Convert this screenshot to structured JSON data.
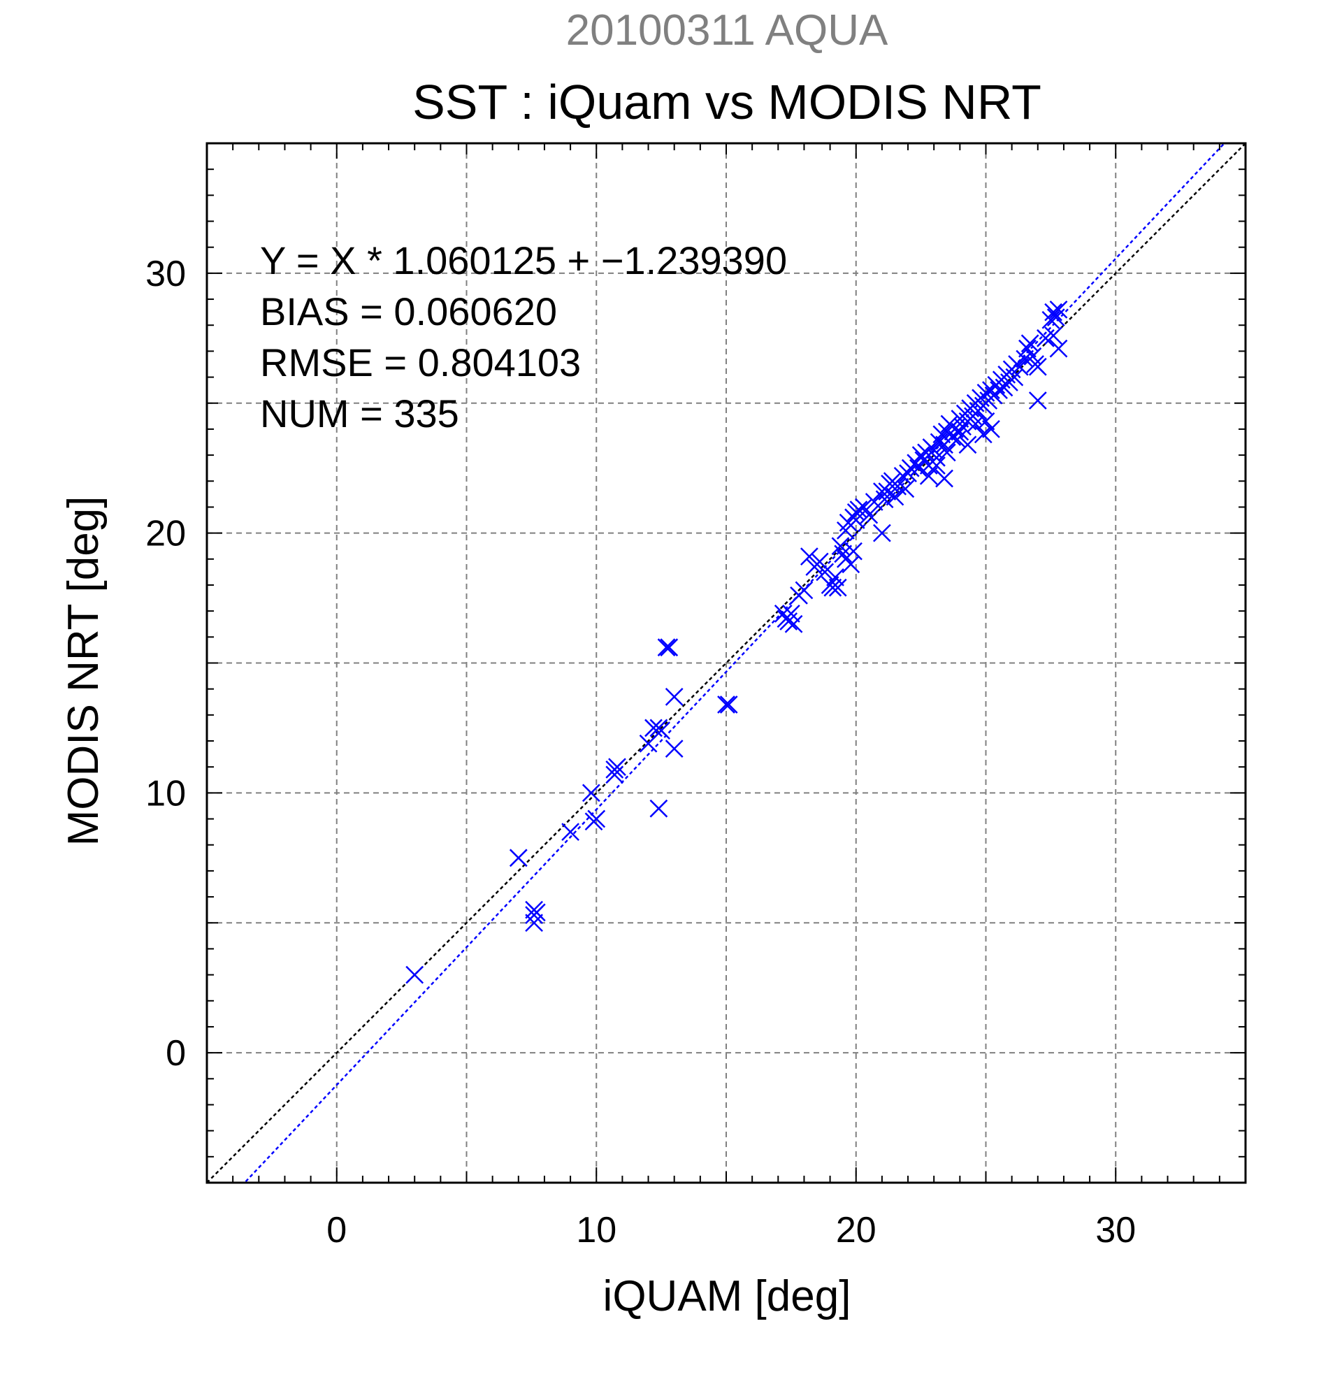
{
  "chart_data": {
    "type": "scatter",
    "supertitle": "20100311 AQUA",
    "title": "SST : iQuam vs MODIS NRT",
    "xlabel": "iQUAM [deg]",
    "ylabel": "MODIS NRT [deg]",
    "xlim": [
      -5,
      35
    ],
    "ylim": [
      -5,
      35
    ],
    "major_ticks": [
      0,
      10,
      20,
      30
    ],
    "tick_labels": [
      "0",
      "10",
      "20",
      "30"
    ],
    "grid_step": 5,
    "grid": true,
    "annotations": [
      "Y = X * 1.060125 + −1.239390",
      "BIAS = 0.060620",
      "RMSE = 0.804103",
      "NUM = 335"
    ],
    "fit_line": {
      "slope": 1.060125,
      "intercept": -1.23939
    },
    "identity_line": true,
    "colors": {
      "points": "#0000ff",
      "fit_line": "#0000ff",
      "identity_line": "#000000",
      "supertitle": "#808080",
      "grid": "#808080"
    },
    "points": [
      [
        3.0,
        3.0
      ],
      [
        7.0,
        7.5
      ],
      [
        7.6,
        5.3
      ],
      [
        7.6,
        5.5
      ],
      [
        7.6,
        5.0
      ],
      [
        7.7,
        5.4
      ],
      [
        9.0,
        8.5
      ],
      [
        9.8,
        10.0
      ],
      [
        10.0,
        9.0
      ],
      [
        9.9,
        8.9
      ],
      [
        10.7,
        10.7
      ],
      [
        10.8,
        11.0
      ],
      [
        10.7,
        10.9
      ],
      [
        12.0,
        11.9
      ],
      [
        12.2,
        12.5
      ],
      [
        12.4,
        12.5
      ],
      [
        12.5,
        12.4
      ],
      [
        12.7,
        15.6
      ],
      [
        12.8,
        15.6
      ],
      [
        12.4,
        9.4
      ],
      [
        13.0,
        13.7
      ],
      [
        13.0,
        11.7
      ],
      [
        15.0,
        13.4
      ],
      [
        15.1,
        13.4
      ],
      [
        17.2,
        16.9
      ],
      [
        17.3,
        16.7
      ],
      [
        17.4,
        16.6
      ],
      [
        17.5,
        16.9
      ],
      [
        17.6,
        16.5
      ],
      [
        17.8,
        17.6
      ],
      [
        18.0,
        17.8
      ],
      [
        18.2,
        19.1
      ],
      [
        18.4,
        18.7
      ],
      [
        18.6,
        18.9
      ],
      [
        18.8,
        18.5
      ],
      [
        19.0,
        18.0
      ],
      [
        19.1,
        17.9
      ],
      [
        19.2,
        18.3
      ],
      [
        19.3,
        17.9
      ],
      [
        19.4,
        19.5
      ],
      [
        19.5,
        19.2
      ],
      [
        19.6,
        20.1
      ],
      [
        19.6,
        19.0
      ],
      [
        19.7,
        20.4
      ],
      [
        19.8,
        18.8
      ],
      [
        19.9,
        20.6
      ],
      [
        19.9,
        19.3
      ],
      [
        20.0,
        20.5
      ],
      [
        20.0,
        20.8
      ],
      [
        20.1,
        20.9
      ],
      [
        20.3,
        21.0
      ],
      [
        20.5,
        20.7
      ],
      [
        20.7,
        21.2
      ],
      [
        21.0,
        21.6
      ],
      [
        21.0,
        20.0
      ],
      [
        21.1,
        21.3
      ],
      [
        21.2,
        21.6
      ],
      [
        21.3,
        21.9
      ],
      [
        21.4,
        22.0
      ],
      [
        21.5,
        21.4
      ],
      [
        21.6,
        21.8
      ],
      [
        21.8,
        22.2
      ],
      [
        21.9,
        21.7
      ],
      [
        22.0,
        22.3
      ],
      [
        22.1,
        22.5
      ],
      [
        22.3,
        22.7
      ],
      [
        22.4,
        22.5
      ],
      [
        22.5,
        23.0
      ],
      [
        22.6,
        22.8
      ],
      [
        22.7,
        23.1
      ],
      [
        22.8,
        22.6
      ],
      [
        22.8,
        22.2
      ],
      [
        22.9,
        23.3
      ],
      [
        23.0,
        23.2
      ],
      [
        23.1,
        22.9
      ],
      [
        23.1,
        22.6
      ],
      [
        23.2,
        23.5
      ],
      [
        23.3,
        23.8
      ],
      [
        23.4,
        23.4
      ],
      [
        23.4,
        22.1
      ],
      [
        23.5,
        23.9
      ],
      [
        23.5,
        23.1
      ],
      [
        23.6,
        24.2
      ],
      [
        23.7,
        23.7
      ],
      [
        23.8,
        24.0
      ],
      [
        23.9,
        23.6
      ],
      [
        24.0,
        24.4
      ],
      [
        24.0,
        23.9
      ],
      [
        24.1,
        24.1
      ],
      [
        24.2,
        24.6
      ],
      [
        24.3,
        23.4
      ],
      [
        24.3,
        24.3
      ],
      [
        24.4,
        24.8
      ],
      [
        24.5,
        24.5
      ],
      [
        24.6,
        25.0
      ],
      [
        24.6,
        24.2
      ],
      [
        24.7,
        24.7
      ],
      [
        24.8,
        25.2
      ],
      [
        24.9,
        24.9
      ],
      [
        24.9,
        23.8
      ],
      [
        25.0,
        25.4
      ],
      [
        25.0,
        24.3
      ],
      [
        25.1,
        25.1
      ],
      [
        25.2,
        25.5
      ],
      [
        25.2,
        24.0
      ],
      [
        25.3,
        25.3
      ],
      [
        25.4,
        25.7
      ],
      [
        25.5,
        25.5
      ],
      [
        25.6,
        25.9
      ],
      [
        25.7,
        25.6
      ],
      [
        25.8,
        26.1
      ],
      [
        25.9,
        25.8
      ],
      [
        26.0,
        26.3
      ],
      [
        26.1,
        26.0
      ],
      [
        26.2,
        26.5
      ],
      [
        26.3,
        26.4
      ],
      [
        26.5,
        26.7
      ],
      [
        26.6,
        27.1
      ],
      [
        26.7,
        27.3
      ],
      [
        26.8,
        26.8
      ],
      [
        26.9,
        26.5
      ],
      [
        27.0,
        26.4
      ],
      [
        27.0,
        25.1
      ],
      [
        27.3,
        27.5
      ],
      [
        27.5,
        28.2
      ],
      [
        27.6,
        28.5
      ],
      [
        27.7,
        28.3
      ],
      [
        27.8,
        28.6
      ],
      [
        27.8,
        27.1
      ],
      [
        27.6,
        27.6
      ]
    ]
  }
}
